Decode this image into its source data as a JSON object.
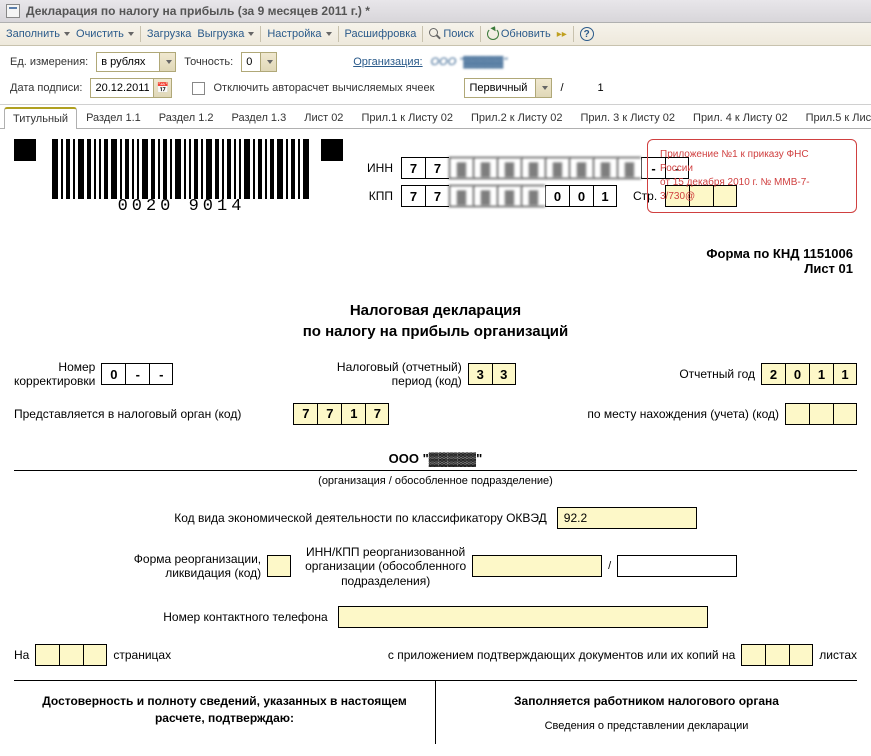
{
  "window": {
    "title": "Декларация по налогу на прибыль (за 9 месяцев 2011 г.) *"
  },
  "toolbar": {
    "fill": "Заполнить",
    "clear": "Очистить",
    "load": "Загрузка",
    "upload": "Выгрузка",
    "settings": "Настройка",
    "decode": "Расшифровка",
    "search": "Поиск",
    "refresh": "Обновить"
  },
  "params": {
    "unit_label": "Ед. измерения:",
    "unit_value": "в рублях",
    "precision_label": "Точность:",
    "precision_value": "0",
    "org_label": "Организация:",
    "org_value": "ООО \"▓▓▓▓▓\"",
    "sign_date_label": "Дата подписи:",
    "sign_date_value": "20.12.2011",
    "autocalc_label": "Отключить авторасчет вычисляемых ячеек",
    "doc_type": "Первичный",
    "slash": "/",
    "doc_num": "1"
  },
  "tabs": [
    "Титульный",
    "Раздел 1.1",
    "Раздел 1.2",
    "Раздел 1.3",
    "Лист 02",
    "Прил.1 к Листу 02",
    "Прил.2 к Листу 02",
    "Прил. 3 к Листу 02",
    "Прил. 4 к Листу 02",
    "Прил.5 к Листу 02",
    "Ли"
  ],
  "active_tab": 0,
  "barcode": {
    "text": "0020 9014"
  },
  "order_box": {
    "line1": "Приложение №1 к приказу ФНС России",
    "line2": "от 15 декабря 2010 г. № ММВ-7-3/730@"
  },
  "inn": {
    "label": "ИНН",
    "cells": [
      "7",
      "7",
      "▓",
      "▓",
      "▓",
      "▓",
      "▓",
      "▓",
      "▓",
      "▓",
      "-",
      "-"
    ]
  },
  "kpp": {
    "label": "КПП",
    "cells": [
      "7",
      "7",
      "▓",
      "▓",
      "▓",
      "▓",
      "0",
      "0",
      "1"
    ],
    "page_label": "Стр.",
    "page_cells": [
      "",
      "",
      ""
    ]
  },
  "form_code": "Форма по КНД 1151006",
  "sheet": "Лист 01",
  "title1": "Налоговая декларация",
  "title2": "по налогу на прибыль организаций",
  "corr": {
    "label1": "Номер",
    "label2": "корректировки",
    "cells": [
      "0",
      "-",
      "-"
    ]
  },
  "period": {
    "label1": "Налоговый (отчетный)",
    "label2": "период (код)",
    "cells": [
      "3",
      "3"
    ]
  },
  "year": {
    "label": "Отчетный год",
    "cells": [
      "2",
      "0",
      "1",
      "1"
    ]
  },
  "tax_org": {
    "label": "Представляется в налоговый орган (код)",
    "cells": [
      "7",
      "7",
      "1",
      "7"
    ]
  },
  "place": {
    "label": "по месту нахождения (учета) (код)",
    "cells": [
      "",
      "",
      ""
    ]
  },
  "org_name": "ООО \"▓▓▓▓▓\"",
  "org_sub": "(организация / обособленное подразделение)",
  "okved": {
    "label": "Код вида экономической деятельности по классификатору ОКВЭД",
    "value": "92.2"
  },
  "reorg": {
    "label1": "Форма реорганизации,",
    "label2": "ликвидация (код)",
    "cell": "",
    "inn_label1": "ИНН/КПП реорганизованной",
    "inn_label2": "организации (обособленного",
    "inn_label3": "подразделения)",
    "inn_val": "",
    "kpp_val": "",
    "sep": "/"
  },
  "phone": {
    "label": "Номер контактного телефона",
    "value": ""
  },
  "pages": {
    "prefix": "На",
    "cells": [
      "",
      "",
      ""
    ],
    "suffix": "страницах",
    "attach_prefix": "с приложением подтверждающих документов или их копий на",
    "attach_cells": [
      "",
      "",
      ""
    ],
    "attach_suffix": "листах"
  },
  "bottom": {
    "left_title": "Достоверность и полноту сведений, указанных в настоящем расчете, подтверждаю:",
    "right_title": "Заполняется работником налогового органа",
    "right_sub": "Сведения о представлении декларации"
  },
  "colors": {
    "yellow": "#fdf8c8",
    "red_border": "#d04040",
    "link": "#2a5a8a"
  }
}
